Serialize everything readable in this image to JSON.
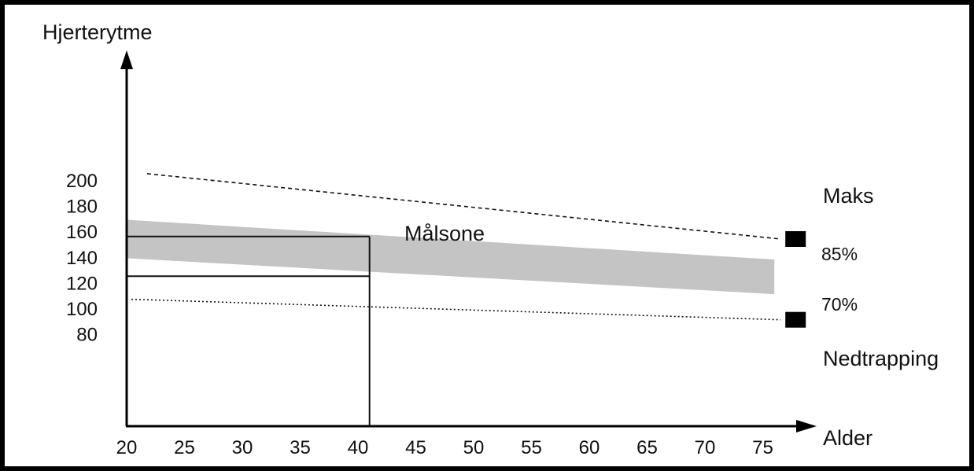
{
  "chart_data": {
    "type": "line",
    "title": "",
    "xlabel": "Alder",
    "ylabel": "Hjerterytme",
    "x_ticks": [
      20,
      25,
      30,
      35,
      40,
      45,
      50,
      55,
      60,
      65,
      70,
      75
    ],
    "y_ticks": [
      80,
      100,
      120,
      140,
      160,
      180,
      200
    ],
    "xlim": [
      20,
      77
    ],
    "ylim": [
      70,
      210
    ],
    "grid": false,
    "series": [
      {
        "name": "Maks",
        "style": "dashed",
        "x": [
          20,
          76
        ],
        "y": [
          205,
          154
        ],
        "end_marker": "square"
      },
      {
        "name": "Nedtrapping",
        "style": "dotted",
        "x": [
          20,
          76
        ],
        "y": [
          107,
          91
        ],
        "end_marker": "square"
      }
    ],
    "band": {
      "label": "Målsone",
      "upper": {
        "name": "85%",
        "x": [
          20,
          76
        ],
        "y": [
          169,
          138
        ]
      },
      "lower": {
        "name": "70%",
        "x": [
          20,
          76
        ],
        "y": [
          139,
          111
        ]
      },
      "color": "#c4c4c4"
    },
    "reference_lines": {
      "age": 41,
      "heart_rates": [
        156,
        125
      ]
    },
    "colors": {
      "line": "#111111",
      "band": "#c4c4c4",
      "frame": "#000000"
    }
  }
}
